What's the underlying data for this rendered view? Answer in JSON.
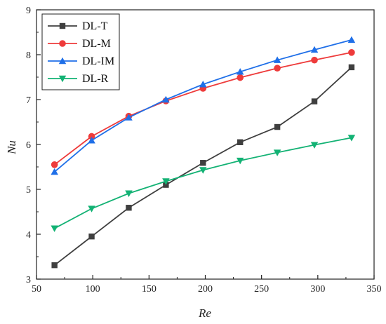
{
  "chart_data": {
    "type": "line",
    "xlabel": "Re",
    "ylabel": "Nu",
    "xlim": [
      50,
      350
    ],
    "ylim": [
      3,
      9
    ],
    "xticks": [
      50,
      100,
      150,
      200,
      250,
      300,
      350
    ],
    "yticks": [
      3,
      4,
      5,
      6,
      7,
      8,
      9
    ],
    "grid": false,
    "legend_position": "top-left",
    "x": [
      66,
      99,
      132,
      165,
      198,
      231,
      264,
      297,
      330
    ],
    "series": [
      {
        "name": "DL-T",
        "color": "#3f3f3f",
        "marker": "square",
        "values": [
          3.31,
          3.95,
          4.59,
          5.1,
          5.59,
          6.05,
          6.39,
          6.96,
          7.72
        ]
      },
      {
        "name": "DL-M",
        "color": "#ee3b3b",
        "marker": "circle",
        "values": [
          5.55,
          6.18,
          6.63,
          6.97,
          7.25,
          7.49,
          7.7,
          7.88,
          8.05
        ]
      },
      {
        "name": "DL-IM",
        "color": "#1f6fe8",
        "marker": "triangle-up",
        "values": [
          5.39,
          6.09,
          6.6,
          7.0,
          7.34,
          7.62,
          7.88,
          8.11,
          8.33
        ]
      },
      {
        "name": "DL-R",
        "color": "#13b274",
        "marker": "triangle-down",
        "values": [
          4.13,
          4.57,
          4.91,
          5.18,
          5.43,
          5.64,
          5.82,
          5.99,
          6.15
        ]
      }
    ]
  }
}
